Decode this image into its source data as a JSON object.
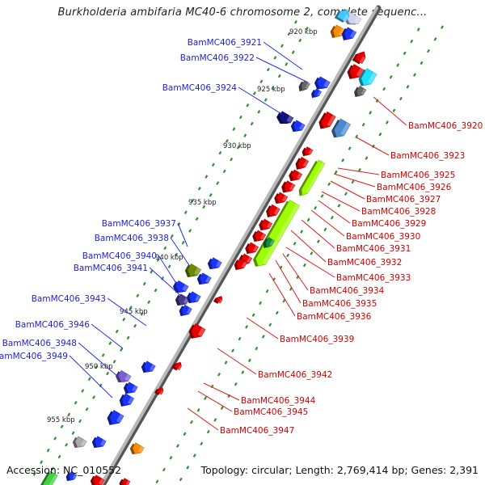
{
  "title": "Burkholderia ambifaria MC40-6 chromosome 2, complete sequenc...",
  "footer": {
    "accession": "Accession: NC_010552",
    "topology": "Topology: circular; Length: 2,769,414 bp; Genes: 2,391"
  },
  "colors": {
    "backbone": "#8c8c8c",
    "scale_dots": "#2f8f2f",
    "left_label": "#1f1fd6",
    "left_line": "#2a2af0",
    "right_label": "#d40000",
    "right_line": "#e51a1a",
    "tick_label": "#222222"
  },
  "ticks": [
    {
      "label": "920 kbp"
    },
    {
      "label": "925 kbp"
    },
    {
      "label": "930 kbp"
    },
    {
      "label": "935 kbp"
    },
    {
      "label": "940 kbp"
    },
    {
      "label": "945 kbp"
    },
    {
      "label": "950 kbp"
    },
    {
      "label": "955 kbp"
    }
  ],
  "left_labels": [
    {
      "text": "BamMC406_3921"
    },
    {
      "text": "BamMC406_3922"
    },
    {
      "text": "BamMC406_3924"
    },
    {
      "text": "BamMC406_3937"
    },
    {
      "text": "BamMC406_3938"
    },
    {
      "text": "BamMC406_3940"
    },
    {
      "text": "BamMC406_3941"
    },
    {
      "text": "BamMC406_3943"
    },
    {
      "text": "BamMC406_3946"
    },
    {
      "text": "BamMC406_3948"
    },
    {
      "text": "BamMC406_3949"
    }
  ],
  "right_labels": [
    {
      "text": "BamMC406_3920"
    },
    {
      "text": "BamMC406_3923"
    },
    {
      "text": "BamMC406_3925"
    },
    {
      "text": "BamMC406_3926"
    },
    {
      "text": "BamMC406_3927"
    },
    {
      "text": "BamMC406_3928"
    },
    {
      "text": "BamMC406_3929"
    },
    {
      "text": "BamMC406_3930"
    },
    {
      "text": "BamMC406_3931"
    },
    {
      "text": "BamMC406_3932"
    },
    {
      "text": "BamMC406_3933"
    },
    {
      "text": "BamMC406_3934"
    },
    {
      "text": "BamMC406_3935"
    },
    {
      "text": "BamMC406_3936"
    },
    {
      "text": "BamMC406_3939"
    },
    {
      "text": "BamMC406_3942"
    },
    {
      "text": "BamMC406_3944"
    },
    {
      "text": "BamMC406_3945"
    },
    {
      "text": "BamMC406_3947"
    }
  ],
  "genes": [
    {
      "color": "#ff8c00"
    },
    {
      "color": "#1a33ff"
    },
    {
      "color": "#e60000"
    },
    {
      "color": "#d0d0f0"
    },
    {
      "color": "#3ec8ff"
    },
    {
      "color": "#e60000"
    },
    {
      "color": "#20e0ff"
    },
    {
      "color": "#666666"
    },
    {
      "color": "#1a33ff"
    },
    {
      "color": "#666666"
    },
    {
      "color": "#1a33ff"
    },
    {
      "color": "#e60000"
    },
    {
      "color": "#4a8ad0"
    },
    {
      "color": "#101080"
    },
    {
      "color": "#1a33ff"
    },
    {
      "color": "#e60000"
    },
    {
      "color": "#e60000"
    },
    {
      "color": "#e60000"
    },
    {
      "color": "#e60000"
    },
    {
      "color": "#e60000"
    },
    {
      "color": "#e60000"
    },
    {
      "color": "#e60000"
    },
    {
      "color": "#e60000"
    },
    {
      "color": "#e60000"
    },
    {
      "color": "#e60000"
    },
    {
      "color": "#e60000"
    },
    {
      "color": "#9dff00"
    },
    {
      "color": "#9dff00"
    },
    {
      "color": "#138a3c"
    },
    {
      "color": "#1a33ff"
    },
    {
      "color": "#6a8a00"
    },
    {
      "color": "#1a33ff"
    },
    {
      "color": "#1a33ff"
    },
    {
      "color": "#4a3a8a"
    },
    {
      "color": "#1a33ff"
    },
    {
      "color": "#1a33ff"
    },
    {
      "color": "#e60000"
    },
    {
      "color": "#e60000"
    },
    {
      "color": "#1a33ff"
    },
    {
      "color": "#7a60d0"
    },
    {
      "color": "#1a33ff"
    },
    {
      "color": "#1a33ff"
    },
    {
      "color": "#1a33ff"
    },
    {
      "color": "#e60000"
    },
    {
      "color": "#e60000"
    },
    {
      "color": "#1a33ff"
    },
    {
      "color": "#aaaaaa"
    },
    {
      "color": "#ff8c00"
    },
    {
      "color": "#e60000"
    },
    {
      "color": "#40d040"
    },
    {
      "color": "#1a33ff"
    },
    {
      "color": "#e60000"
    }
  ]
}
